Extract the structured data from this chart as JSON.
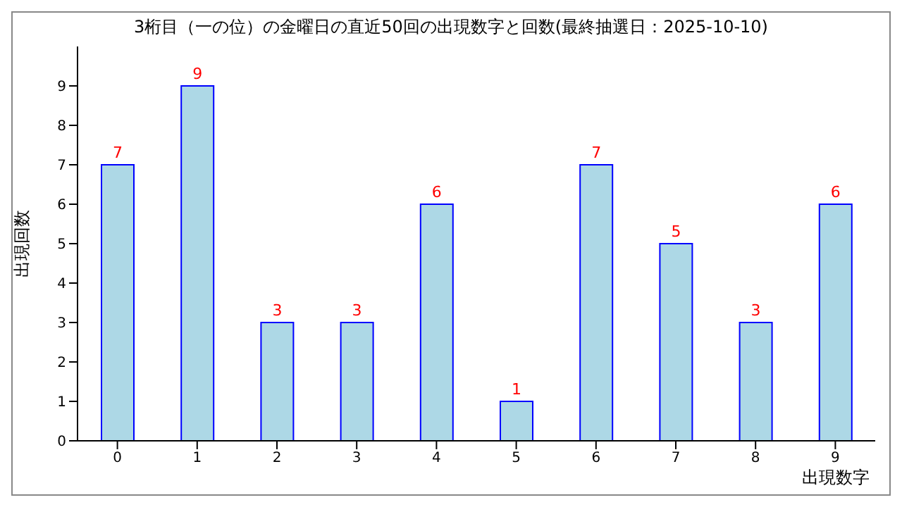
{
  "chart_data": {
    "type": "bar",
    "title": "3桁目（一の位）の金曜日の直近50回の出現数字と回数(最終抽選日：2025-10-10)",
    "xlabel": "出現数字",
    "ylabel": "出現回数",
    "categories": [
      "0",
      "1",
      "2",
      "3",
      "4",
      "5",
      "6",
      "7",
      "8",
      "9"
    ],
    "values": [
      7,
      9,
      3,
      3,
      6,
      1,
      7,
      5,
      3,
      6
    ],
    "color": "#add8e6",
    "ylim": [
      0,
      10
    ],
    "yticks": [
      0,
      1,
      2,
      3,
      4,
      5,
      6,
      7,
      8,
      9
    ],
    "grid": false,
    "data_labels": true
  }
}
